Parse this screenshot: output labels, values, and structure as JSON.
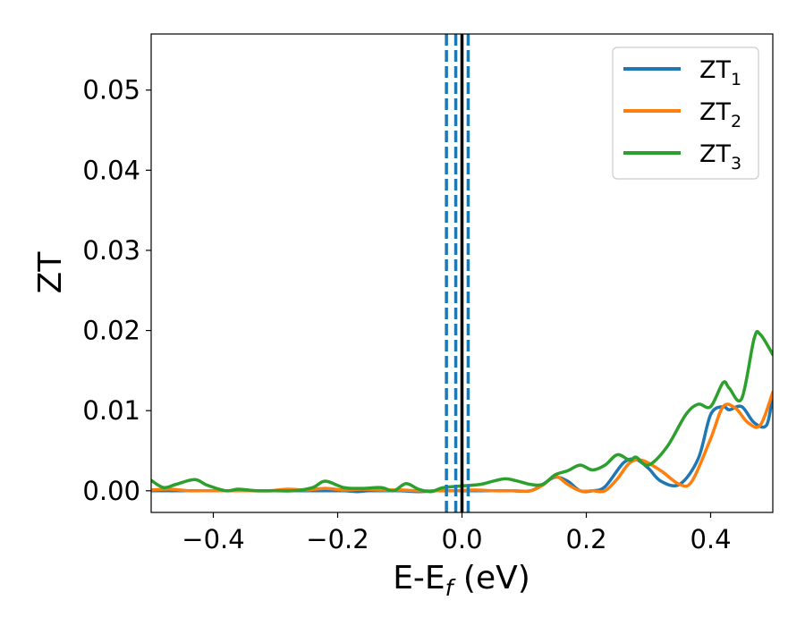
{
  "chart_data": {
    "type": "line",
    "xlabel": "E-E_f (eV)",
    "xlabel_parts": {
      "main": "E-E",
      "sub": "f",
      "rest": " (eV)"
    },
    "ylabel": "ZT",
    "xlim": [
      -0.5,
      0.5
    ],
    "ylim": [
      -0.0027,
      0.057
    ],
    "xticks": [
      -0.4,
      -0.2,
      0.0,
      0.2,
      0.4
    ],
    "xtick_labels": [
      "−0.4",
      "−0.2",
      "0.0",
      "0.2",
      "0.4"
    ],
    "yticks": [
      0.0,
      0.01,
      0.02,
      0.03,
      0.04,
      0.05
    ],
    "ytick_labels": [
      "0.00",
      "0.01",
      "0.02",
      "0.03",
      "0.04",
      "0.05"
    ],
    "grid": false,
    "legend_position": "top-right",
    "series": [
      {
        "name": "ZT_1",
        "legend": {
          "main": "ZT",
          "sub": "1"
        },
        "color": "#1f77b4",
        "x": [
          -0.5,
          -0.47,
          -0.44,
          -0.42,
          -0.4,
          -0.37,
          -0.34,
          -0.31,
          -0.28,
          -0.25,
          -0.22,
          -0.19,
          -0.17,
          -0.15,
          -0.13,
          -0.1,
          -0.07,
          -0.04,
          -0.01,
          0.02,
          0.05,
          0.08,
          0.11,
          0.13,
          0.15,
          0.17,
          0.19,
          0.21,
          0.23,
          0.26,
          0.28,
          0.3,
          0.32,
          0.35,
          0.38,
          0.4,
          0.42,
          0.43,
          0.45,
          0.47,
          0.49,
          0.5
        ],
        "y": [
          0.0,
          0.0,
          0.0,
          0.0,
          0.0,
          0.0,
          0.0,
          0.0,
          0.0,
          0.0,
          0.0,
          0.0,
          -0.0001,
          0.0,
          0.0,
          0.0,
          -0.0001,
          0.0,
          0.0,
          0.0,
          0.0,
          0.0,
          0.0,
          0.0008,
          0.0017,
          0.0012,
          0.0,
          0.0,
          0.0005,
          0.0035,
          0.0039,
          0.0028,
          0.0012,
          0.0008,
          0.004,
          0.0095,
          0.0105,
          0.0101,
          0.0105,
          0.0085,
          0.0082,
          0.012
        ]
      },
      {
        "name": "ZT_2",
        "legend": {
          "main": "ZT",
          "sub": "2"
        },
        "color": "#ff7f0e",
        "x": [
          -0.5,
          -0.47,
          -0.44,
          -0.42,
          -0.4,
          -0.37,
          -0.34,
          -0.31,
          -0.28,
          -0.25,
          -0.22,
          -0.19,
          -0.16,
          -0.13,
          -0.1,
          -0.07,
          -0.04,
          -0.01,
          0.02,
          0.05,
          0.08,
          0.11,
          0.13,
          0.15,
          0.17,
          0.19,
          0.21,
          0.23,
          0.25,
          0.27,
          0.29,
          0.32,
          0.35,
          0.37,
          0.4,
          0.42,
          0.44,
          0.46,
          0.48,
          0.5
        ],
        "y": [
          0.0001,
          0.0002,
          0.0,
          0.0,
          0.0,
          0.0,
          0.0,
          0.0,
          0.0002,
          0.0001,
          0.0003,
          0.0001,
          0.0002,
          0.0001,
          0.0001,
          0.0,
          0.0,
          0.0,
          0.0001,
          0.0,
          0.0,
          0.0,
          0.0007,
          0.0018,
          0.0008,
          0.0,
          0.0,
          0.0,
          0.0015,
          0.0035,
          0.0038,
          0.0025,
          0.0008,
          0.0012,
          0.0065,
          0.0105,
          0.0103,
          0.0085,
          0.0082,
          0.0123
        ]
      },
      {
        "name": "ZT_3",
        "legend": {
          "main": "ZT",
          "sub": "3"
        },
        "color": "#2ca02c",
        "x": [
          -0.5,
          -0.48,
          -0.46,
          -0.43,
          -0.41,
          -0.38,
          -0.36,
          -0.33,
          -0.3,
          -0.27,
          -0.24,
          -0.22,
          -0.19,
          -0.16,
          -0.13,
          -0.11,
          -0.09,
          -0.07,
          -0.05,
          -0.03,
          0.0,
          0.03,
          0.05,
          0.07,
          0.09,
          0.11,
          0.13,
          0.15,
          0.17,
          0.19,
          0.21,
          0.23,
          0.25,
          0.27,
          0.28,
          0.3,
          0.33,
          0.36,
          0.38,
          0.4,
          0.42,
          0.43,
          0.45,
          0.47,
          0.48,
          0.5
        ],
        "y": [
          0.0013,
          0.0004,
          0.0008,
          0.0014,
          0.0007,
          0.0,
          0.0002,
          0.0,
          0.0,
          0.0,
          0.0004,
          0.0012,
          0.0004,
          0.0003,
          0.0004,
          0.0,
          0.0009,
          0.0002,
          -0.0001,
          0.0004,
          0.0006,
          0.0008,
          0.0012,
          0.0015,
          0.0012,
          0.0008,
          0.0008,
          0.002,
          0.0025,
          0.0032,
          0.0026,
          0.0032,
          0.0045,
          0.0038,
          0.0042,
          0.0032,
          0.0055,
          0.0095,
          0.0108,
          0.0105,
          0.0135,
          0.0128,
          0.0115,
          0.019,
          0.0195,
          0.017
        ]
      }
    ],
    "vertical_lines": [
      {
        "x": -0.025,
        "style": "dashed",
        "color": "#1f77b4"
      },
      {
        "x": -0.01,
        "style": "dashed",
        "color": "#1f77b4"
      },
      {
        "x": 0.01,
        "style": "dashed",
        "color": "#1f77b4"
      },
      {
        "x": 0.0,
        "style": "solid",
        "color": "#000000"
      }
    ]
  }
}
